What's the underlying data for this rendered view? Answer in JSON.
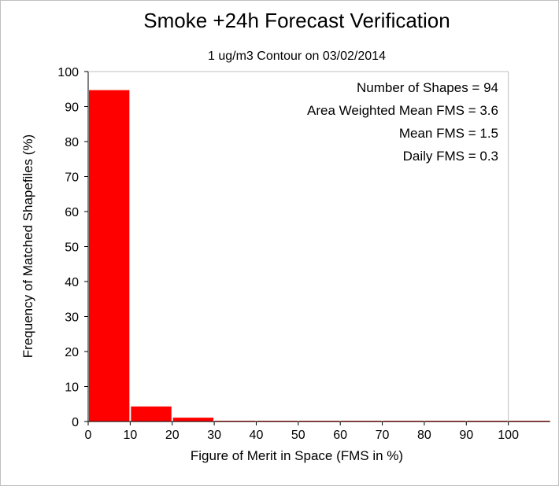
{
  "chart_data": {
    "type": "bar",
    "title": "Smoke +24h Forecast Verification",
    "subtitle": "1 ug/m3 Contour on 03/02/2014",
    "xlabel": "Figure of Merit in Space (FMS in %)",
    "ylabel": "Frequency of Matched Shapefiles (%)",
    "xlim": [
      0,
      110
    ],
    "ylim": [
      0,
      100
    ],
    "xticks": [
      0,
      10,
      20,
      30,
      40,
      50,
      60,
      70,
      80,
      90,
      100
    ],
    "yticks": [
      0,
      10,
      20,
      30,
      40,
      50,
      60,
      70,
      80,
      90,
      100
    ],
    "bin_edges": [
      0,
      10,
      20,
      30,
      40,
      50,
      60,
      70,
      80,
      90,
      100,
      110
    ],
    "values": [
      94.7,
      4.3,
      1.1,
      0,
      0,
      0,
      0,
      0,
      0,
      0,
      0
    ],
    "bar_color": "#ff0000",
    "grid": false,
    "annotations": [
      "Number of Shapes = 94",
      "Area Weighted Mean FMS = 3.6",
      "Mean FMS = 1.5",
      "Daily FMS = 0.3"
    ]
  }
}
